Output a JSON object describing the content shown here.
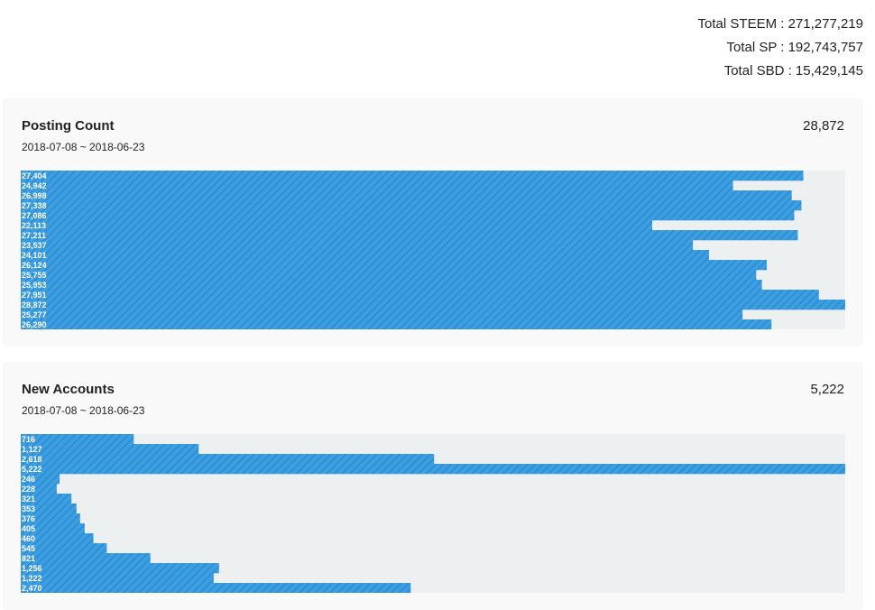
{
  "totals": {
    "steem": "Total STEEM : 271,277,219",
    "sp": "Total SP : 192,743,757",
    "sbd": "Total SBD : 15,429,145"
  },
  "colors": {
    "bar": "#3d9ee0",
    "bar_stripe": "#2f8fd4",
    "track": "#edf0f1",
    "card": "#f9f9f9"
  },
  "chart_data": [
    {
      "type": "bar",
      "orientation": "horizontal",
      "title": "Posting Count",
      "total": "28,872",
      "date_range": "2018-07-08 ~ 2018-06-23",
      "xlim": [
        0,
        28872
      ],
      "values": [
        27404,
        24942,
        26998,
        27338,
        27086,
        22113,
        27211,
        23537,
        24101,
        26124,
        25755,
        25953,
        27951,
        28872,
        25277,
        26290
      ],
      "labels": [
        "27,404",
        "24,942",
        "26,998",
        "27,338",
        "27,086",
        "22,113",
        "27,211",
        "23,537",
        "24,101",
        "26,124",
        "25,755",
        "25,953",
        "27,951",
        "28,872",
        "25,277",
        "26,290"
      ]
    },
    {
      "type": "bar",
      "orientation": "horizontal",
      "title": "New Accounts",
      "total": "5,222",
      "date_range": "2018-07-08 ~ 2018-06-23",
      "xlim": [
        0,
        5222
      ],
      "values": [
        716,
        1127,
        2618,
        5222,
        246,
        228,
        321,
        353,
        376,
        405,
        460,
        545,
        821,
        1256,
        1222,
        2470
      ],
      "labels": [
        "716",
        "1,127",
        "2,618",
        "5,222",
        "246",
        "228",
        "321",
        "353",
        "376",
        "405",
        "460",
        "545",
        "821",
        "1,256",
        "1,222",
        "2,470"
      ]
    }
  ]
}
